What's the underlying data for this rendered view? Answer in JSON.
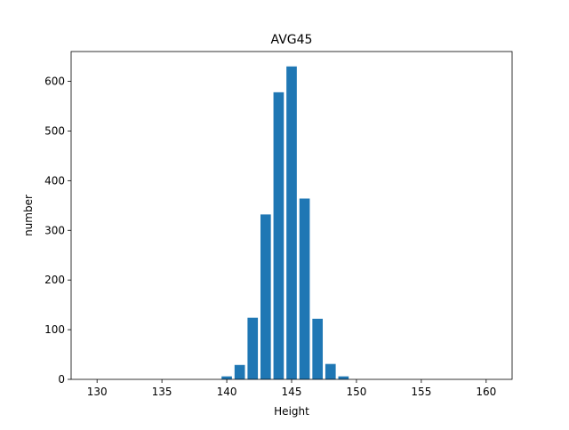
{
  "chart_data": {
    "type": "bar",
    "title": "AVG45",
    "xlabel": "Height",
    "ylabel": "number",
    "x": [
      140,
      141,
      142,
      143,
      144,
      145,
      146,
      147,
      148,
      149
    ],
    "values": [
      6,
      29,
      124,
      332,
      578,
      630,
      364,
      122,
      31,
      6
    ],
    "xlim": [
      128,
      162
    ],
    "ylim": [
      0,
      660
    ],
    "xticks": [
      "130",
      "135",
      "140",
      "145",
      "150",
      "155",
      "160"
    ],
    "yticks": [
      "0",
      "100",
      "200",
      "300",
      "400",
      "500",
      "600"
    ],
    "grid": false,
    "legend": "none",
    "colors": {
      "bar": "#1f77b4"
    }
  }
}
